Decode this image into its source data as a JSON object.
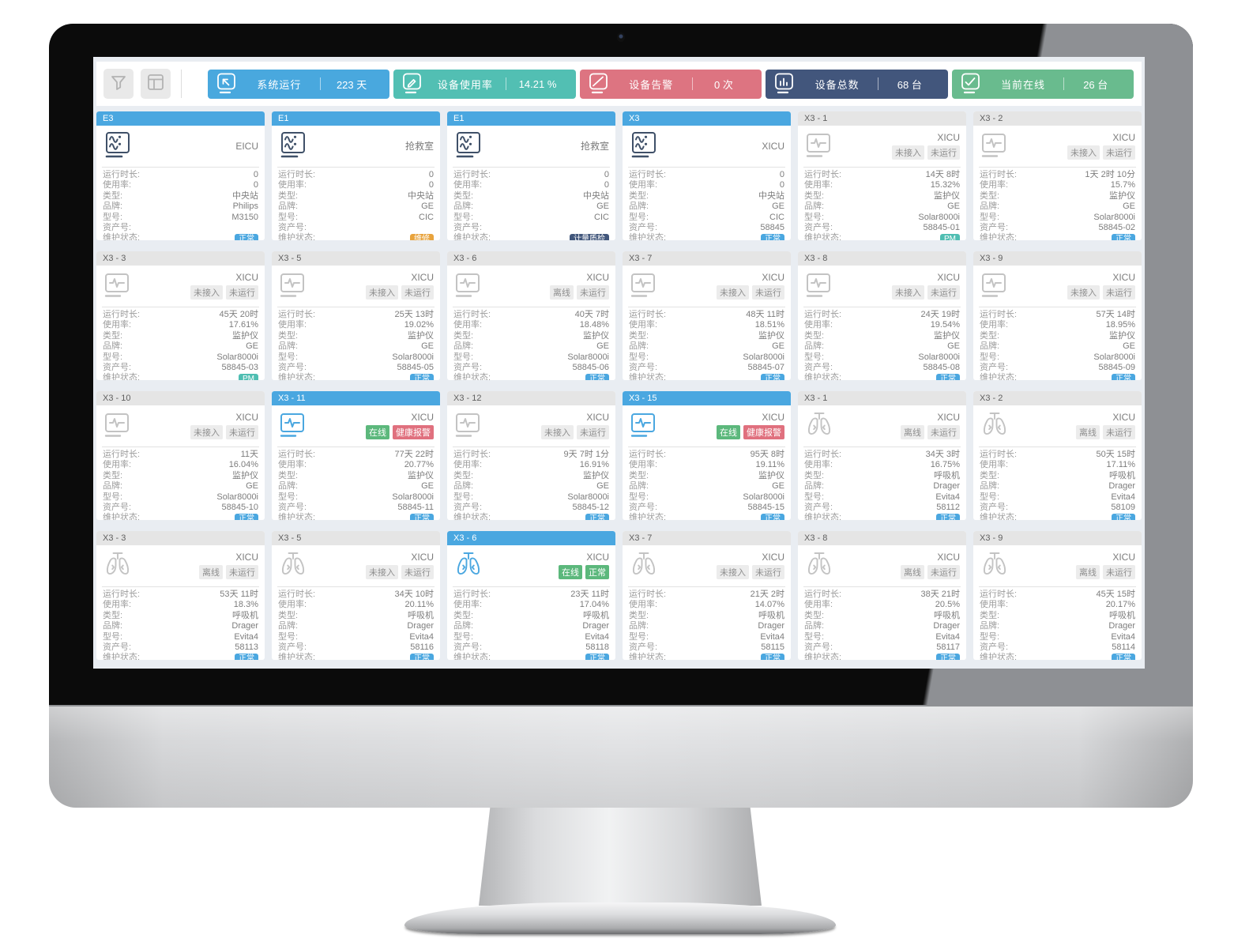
{
  "toolbar": {
    "buttons": [
      {
        "name": "filter",
        "icon": "filter-icon"
      },
      {
        "name": "layout",
        "icon": "layout-icon"
      }
    ],
    "stats": [
      {
        "label": "系统运行",
        "value": "223 天",
        "color": "#49a8de",
        "icon": "cursor-icon"
      },
      {
        "label": "设备使用率",
        "value": "14.21 %",
        "color": "#52bfb3",
        "icon": "edit-icon"
      },
      {
        "label": "设备告警",
        "value": "0 次",
        "color": "#dd7481",
        "icon": "alarm-icon"
      },
      {
        "label": "设备总数",
        "value": "68 台",
        "color": "#42567c",
        "icon": "bar-chart-icon"
      },
      {
        "label": "当前在线",
        "value": "26 台",
        "color": "#69bb8e",
        "icon": "check-icon"
      }
    ]
  },
  "field_labels": [
    "运行时长:",
    "使用率:",
    "类型:",
    "品牌:",
    "型号:",
    "资产号:",
    "维护状态:"
  ],
  "colors": {
    "online_blue": "#4aa7e0",
    "icon_gray": "#c3c3c3",
    "icon_navy": "#3f5068"
  },
  "cards": [
    {
      "id": "E3",
      "online": true,
      "icon": "central",
      "loc": "EICU",
      "badges": [],
      "runtime": "0",
      "usage": "0",
      "type": "中央站",
      "brand": "Philips",
      "model": "M3150",
      "asset": "",
      "maint": [
        "正常",
        "m-blue"
      ]
    },
    {
      "id": "E1",
      "online": true,
      "icon": "central",
      "loc": "抢救室",
      "badges": [],
      "runtime": "0",
      "usage": "0",
      "type": "中央站",
      "brand": "GE",
      "model": "CIC",
      "asset": "",
      "maint": [
        "维修",
        "m-orange"
      ]
    },
    {
      "id": "E1",
      "online": true,
      "icon": "central",
      "loc": "抢救室",
      "badges": [],
      "runtime": "0",
      "usage": "0",
      "type": "中央站",
      "brand": "GE",
      "model": "CIC",
      "asset": "",
      "maint": [
        "计量质检",
        "m-navy"
      ]
    },
    {
      "id": "X3",
      "online": true,
      "icon": "central",
      "loc": "XICU",
      "badges": [],
      "runtime": "0",
      "usage": "0",
      "type": "中央站",
      "brand": "GE",
      "model": "CIC",
      "asset": "58845",
      "maint": [
        "正常",
        "m-blue"
      ]
    },
    {
      "id": "X3 - 1",
      "online": false,
      "icon": "monitor",
      "loc": "XICU",
      "badges": [
        [
          "未接入",
          "b-gray"
        ],
        [
          "未运行",
          "b-gray"
        ]
      ],
      "runtime": "14天 8时",
      "usage": "15.32%",
      "type": "监护仪",
      "brand": "GE",
      "model": "Solar8000i",
      "asset": "58845-01",
      "maint": [
        "PM",
        "m-teal"
      ]
    },
    {
      "id": "X3 - 2",
      "online": false,
      "icon": "monitor",
      "loc": "XICU",
      "badges": [
        [
          "未接入",
          "b-gray"
        ],
        [
          "未运行",
          "b-gray"
        ]
      ],
      "runtime": "1天 2时 10分",
      "usage": "15.7%",
      "type": "监护仪",
      "brand": "GE",
      "model": "Solar8000i",
      "asset": "58845-02",
      "maint": [
        "正常",
        "m-blue"
      ]
    },
    {
      "id": "X3 - 3",
      "online": false,
      "icon": "monitor",
      "loc": "XICU",
      "badges": [
        [
          "未接入",
          "b-gray"
        ],
        [
          "未运行",
          "b-gray"
        ]
      ],
      "runtime": "45天 20时",
      "usage": "17.61%",
      "type": "监护仪",
      "brand": "GE",
      "model": "Solar8000i",
      "asset": "58845-03",
      "maint": [
        "PM",
        "m-teal"
      ]
    },
    {
      "id": "X3 - 5",
      "online": false,
      "icon": "monitor",
      "loc": "XICU",
      "badges": [
        [
          "未接入",
          "b-gray"
        ],
        [
          "未运行",
          "b-gray"
        ]
      ],
      "runtime": "25天 13时",
      "usage": "19.02%",
      "type": "监护仪",
      "brand": "GE",
      "model": "Solar8000i",
      "asset": "58845-05",
      "maint": [
        "正常",
        "m-blue"
      ]
    },
    {
      "id": "X3 - 6",
      "online": false,
      "icon": "monitor",
      "loc": "XICU",
      "badges": [
        [
          "离线",
          "b-gray"
        ],
        [
          "未运行",
          "b-gray"
        ]
      ],
      "runtime": "40天 7时",
      "usage": "18.48%",
      "type": "监护仪",
      "brand": "GE",
      "model": "Solar8000i",
      "asset": "58845-06",
      "maint": [
        "正常",
        "m-blue"
      ]
    },
    {
      "id": "X3 - 7",
      "online": false,
      "icon": "monitor",
      "loc": "XICU",
      "badges": [
        [
          "未接入",
          "b-gray"
        ],
        [
          "未运行",
          "b-gray"
        ]
      ],
      "runtime": "48天 11时",
      "usage": "18.51%",
      "type": "监护仪",
      "brand": "GE",
      "model": "Solar8000i",
      "asset": "58845-07",
      "maint": [
        "正常",
        "m-blue"
      ]
    },
    {
      "id": "X3 - 8",
      "online": false,
      "icon": "monitor",
      "loc": "XICU",
      "badges": [
        [
          "未接入",
          "b-gray"
        ],
        [
          "未运行",
          "b-gray"
        ]
      ],
      "runtime": "24天 19时",
      "usage": "19.54%",
      "type": "监护仪",
      "brand": "GE",
      "model": "Solar8000i",
      "asset": "58845-08",
      "maint": [
        "正常",
        "m-blue"
      ]
    },
    {
      "id": "X3 - 9",
      "online": false,
      "icon": "monitor",
      "loc": "XICU",
      "badges": [
        [
          "未接入",
          "b-gray"
        ],
        [
          "未运行",
          "b-gray"
        ]
      ],
      "runtime": "57天 14时",
      "usage": "18.95%",
      "type": "监护仪",
      "brand": "GE",
      "model": "Solar8000i",
      "asset": "58845-09",
      "maint": [
        "正常",
        "m-blue"
      ]
    },
    {
      "id": "X3 - 10",
      "online": false,
      "icon": "monitor",
      "loc": "XICU",
      "badges": [
        [
          "未接入",
          "b-gray"
        ],
        [
          "未运行",
          "b-gray"
        ]
      ],
      "runtime": "11天",
      "usage": "16.04%",
      "type": "监护仪",
      "brand": "GE",
      "model": "Solar8000i",
      "asset": "58845-10",
      "maint": [
        "正常",
        "m-blue"
      ]
    },
    {
      "id": "X3 - 11",
      "online": true,
      "icon": "monitor",
      "loc": "XICU",
      "badges": [
        [
          "在线",
          "b-green"
        ],
        [
          "健康报警",
          "b-red"
        ]
      ],
      "runtime": "77天 22时",
      "usage": "20.77%",
      "type": "监护仪",
      "brand": "GE",
      "model": "Solar8000i",
      "asset": "58845-11",
      "maint": [
        "正常",
        "m-blue"
      ]
    },
    {
      "id": "X3 - 12",
      "online": false,
      "icon": "monitor",
      "loc": "XICU",
      "badges": [
        [
          "未接入",
          "b-gray"
        ],
        [
          "未运行",
          "b-gray"
        ]
      ],
      "runtime": "9天 7时 1分",
      "usage": "16.91%",
      "type": "监护仪",
      "brand": "GE",
      "model": "Solar8000i",
      "asset": "58845-12",
      "maint": [
        "正常",
        "m-blue"
      ]
    },
    {
      "id": "X3 - 15",
      "online": true,
      "icon": "monitor",
      "loc": "XICU",
      "badges": [
        [
          "在线",
          "b-green"
        ],
        [
          "健康报警",
          "b-red"
        ]
      ],
      "runtime": "95天 8时",
      "usage": "19.11%",
      "type": "监护仪",
      "brand": "GE",
      "model": "Solar8000i",
      "asset": "58845-15",
      "maint": [
        "正常",
        "m-blue"
      ]
    },
    {
      "id": "X3 - 1",
      "online": false,
      "icon": "lungs",
      "loc": "XICU",
      "badges": [
        [
          "离线",
          "b-gray"
        ],
        [
          "未运行",
          "b-gray"
        ]
      ],
      "runtime": "34天 3时",
      "usage": "16.75%",
      "type": "呼吸机",
      "brand": "Drager",
      "model": "Evita4",
      "asset": "58112",
      "maint": [
        "正常",
        "m-blue"
      ]
    },
    {
      "id": "X3 - 2",
      "online": false,
      "icon": "lungs",
      "loc": "XICU",
      "badges": [
        [
          "离线",
          "b-gray"
        ],
        [
          "未运行",
          "b-gray"
        ]
      ],
      "runtime": "50天 15时",
      "usage": "17.11%",
      "type": "呼吸机",
      "brand": "Drager",
      "model": "Evita4",
      "asset": "58109",
      "maint": [
        "正常",
        "m-blue"
      ]
    },
    {
      "id": "X3 - 3",
      "online": false,
      "icon": "lungs",
      "loc": "XICU",
      "badges": [
        [
          "离线",
          "b-gray"
        ],
        [
          "未运行",
          "b-gray"
        ]
      ],
      "runtime": "53天 11时",
      "usage": "18.3%",
      "type": "呼吸机",
      "brand": "Drager",
      "model": "Evita4",
      "asset": "58113",
      "maint": [
        "正常",
        "m-blue"
      ]
    },
    {
      "id": "X3 - 5",
      "online": false,
      "icon": "lungs",
      "loc": "XICU",
      "badges": [
        [
          "未接入",
          "b-gray"
        ],
        [
          "未运行",
          "b-gray"
        ]
      ],
      "runtime": "34天 10时",
      "usage": "20.11%",
      "type": "呼吸机",
      "brand": "Drager",
      "model": "Evita4",
      "asset": "58116",
      "maint": [
        "正常",
        "m-blue"
      ]
    },
    {
      "id": "X3 - 6",
      "online": true,
      "icon": "lungs",
      "loc": "XICU",
      "badges": [
        [
          "在线",
          "b-green"
        ],
        [
          "正常",
          "b-green"
        ]
      ],
      "runtime": "23天 11时",
      "usage": "17.04%",
      "type": "呼吸机",
      "brand": "Drager",
      "model": "Evita4",
      "asset": "58118",
      "maint": [
        "正常",
        "m-blue"
      ]
    },
    {
      "id": "X3 - 7",
      "online": false,
      "icon": "lungs",
      "loc": "XICU",
      "badges": [
        [
          "未接入",
          "b-gray"
        ],
        [
          "未运行",
          "b-gray"
        ]
      ],
      "runtime": "21天 2时",
      "usage": "14.07%",
      "type": "呼吸机",
      "brand": "Drager",
      "model": "Evita4",
      "asset": "58115",
      "maint": [
        "正常",
        "m-blue"
      ]
    },
    {
      "id": "X3 - 8",
      "online": false,
      "icon": "lungs",
      "loc": "XICU",
      "badges": [
        [
          "离线",
          "b-gray"
        ],
        [
          "未运行",
          "b-gray"
        ]
      ],
      "runtime": "38天 21时",
      "usage": "20.5%",
      "type": "呼吸机",
      "brand": "Drager",
      "model": "Evita4",
      "asset": "58117",
      "maint": [
        "正常",
        "m-blue"
      ]
    },
    {
      "id": "X3 - 9",
      "online": false,
      "icon": "lungs",
      "loc": "XICU",
      "badges": [
        [
          "离线",
          "b-gray"
        ],
        [
          "未运行",
          "b-gray"
        ]
      ],
      "runtime": "45天 15时",
      "usage": "20.17%",
      "type": "呼吸机",
      "brand": "Drager",
      "model": "Evita4",
      "asset": "58114",
      "maint": [
        "正常",
        "m-blue"
      ]
    }
  ]
}
